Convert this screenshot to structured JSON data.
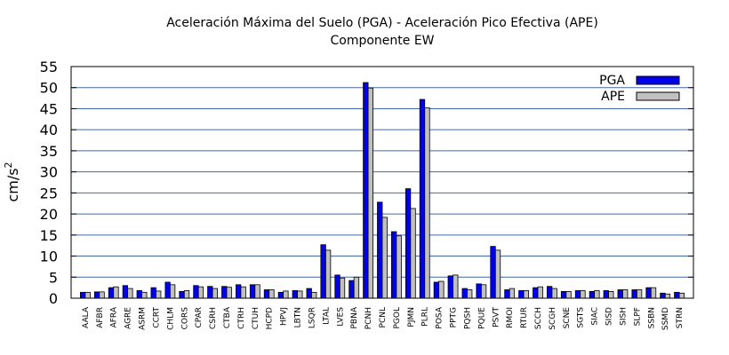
{
  "chart_data": {
    "type": "bar",
    "title": "Aceleración Máxima del Suelo (PGA) -  Aceleración Pico Efectiva (APE)",
    "subtitle": "Componente EW",
    "xlabel": "",
    "ylabel_base": "cm/s",
    "ylabel_exp": "2",
    "ylim": [
      0,
      55
    ],
    "yticks": [
      0,
      5,
      10,
      15,
      20,
      25,
      30,
      35,
      40,
      45,
      50,
      55
    ],
    "grid": true,
    "legend_position": "top-right",
    "colors": {
      "PGA": "#0000ee",
      "APE": "#c0c0c0"
    },
    "categories": [
      "AALA",
      "AFBR",
      "AFRA",
      "AGRE",
      "ASRM",
      "CCRT",
      "CHLM",
      "CORS",
      "CPAR",
      "CSRH",
      "CTBA",
      "CTRH",
      "CTUH",
      "HCPD",
      "HPVJ",
      "LBTN",
      "LSQR",
      "LTAL",
      "LVES",
      "PBNA",
      "PCNH",
      "PCNL",
      "PGOL",
      "PJMN",
      "PLRL",
      "POSA",
      "PPTG",
      "PQSH",
      "PQUE",
      "PSVT",
      "RMOI",
      "RTUR",
      "SCCH",
      "SCGH",
      "SCNE",
      "SGTS",
      "SIAC",
      "SISD",
      "SISH",
      "SLPF",
      "SSBN",
      "SSMD",
      "STRN"
    ],
    "series": [
      {
        "name": "PGA",
        "values": [
          1.4,
          1.5,
          2.5,
          3.0,
          1.8,
          2.5,
          3.8,
          1.6,
          3.0,
          2.8,
          2.8,
          3.2,
          3.2,
          2.0,
          1.4,
          1.8,
          2.3,
          12.7,
          5.5,
          4.2,
          51.2,
          22.8,
          15.8,
          26.0,
          47.2,
          3.8,
          5.3,
          2.3,
          3.4,
          12.3,
          2.0,
          1.8,
          2.5,
          2.8,
          1.6,
          1.8,
          1.6,
          1.8,
          2.0,
          2.0,
          2.5,
          1.2,
          1.4
        ]
      },
      {
        "name": "APE",
        "values": [
          1.4,
          1.5,
          2.7,
          2.3,
          1.4,
          1.7,
          3.2,
          1.8,
          2.7,
          2.3,
          2.6,
          2.7,
          3.2,
          2.0,
          1.7,
          1.7,
          1.4,
          11.4,
          4.8,
          5.0,
          49.9,
          19.2,
          14.8,
          21.3,
          45.2,
          4.0,
          5.5,
          2.0,
          3.2,
          11.4,
          2.3,
          1.8,
          2.7,
          2.3,
          1.6,
          1.8,
          1.8,
          1.6,
          2.0,
          2.0,
          2.5,
          1.0,
          1.2
        ]
      }
    ]
  }
}
